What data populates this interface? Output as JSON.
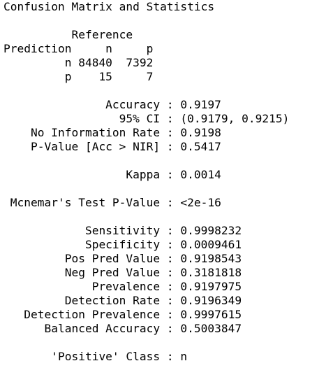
{
  "console": {
    "lines": [
      "Confusion Matrix and Statistics",
      "",
      "          Reference",
      "Prediction     n     p",
      "         n 84840  7392",
      "         p    15     7",
      "",
      "               Accuracy : 0.9197",
      "                 95% CI : (0.9179, 0.9215)",
      "    No Information Rate : 0.9198",
      "    P-Value [Acc > NIR] : 0.5417",
      "",
      "                  Kappa : 0.0014",
      "",
      " Mcnemar's Test P-Value : <2e-16",
      "",
      "            Sensitivity : 0.9998232",
      "            Specificity : 0.0009461",
      "         Pos Pred Value : 0.9198543",
      "         Neg Pred Value : 0.3181818",
      "             Prevalence : 0.9197975",
      "         Detection Rate : 0.9196349",
      "   Detection Prevalence : 0.9997615",
      "      Balanced Accuracy : 0.5003847",
      "",
      "       'Positive' Class : n"
    ]
  }
}
